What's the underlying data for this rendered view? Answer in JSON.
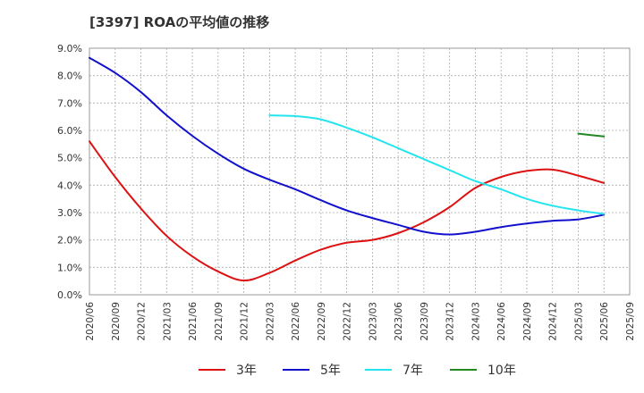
{
  "chart_data": {
    "type": "line",
    "title": "[3397]  ROAの平均値の推移",
    "xlabel": "",
    "ylabel": "",
    "ylim": [
      0,
      9
    ],
    "yticks": [
      "0.0%",
      "1.0%",
      "2.0%",
      "3.0%",
      "4.0%",
      "5.0%",
      "6.0%",
      "7.0%",
      "8.0%",
      "9.0%"
    ],
    "categories": [
      "2020/06",
      "2020/09",
      "2020/12",
      "2021/03",
      "2021/06",
      "2021/09",
      "2021/12",
      "2022/03",
      "2022/06",
      "2022/09",
      "2022/12",
      "2023/03",
      "2023/06",
      "2023/09",
      "2023/12",
      "2024/03",
      "2024/06",
      "2024/09",
      "2024/12",
      "2025/03",
      "2025/06",
      "2025/09"
    ],
    "grid": true,
    "legend_position": "bottom",
    "series": [
      {
        "name": "3年",
        "color": "#dd1111",
        "values": [
          5.6,
          4.3,
          3.15,
          2.15,
          1.4,
          0.85,
          0.52,
          0.8,
          1.25,
          1.65,
          1.9,
          2.0,
          2.25,
          2.65,
          3.2,
          3.9,
          4.3,
          4.52,
          4.57,
          4.35,
          4.08,
          null
        ]
      },
      {
        "name": "5年",
        "color": "#1111cc",
        "values": [
          8.65,
          8.1,
          7.4,
          6.55,
          5.8,
          5.15,
          4.6,
          4.2,
          3.85,
          3.45,
          3.08,
          2.8,
          2.55,
          2.3,
          2.2,
          2.3,
          2.47,
          2.6,
          2.7,
          2.75,
          2.92,
          null
        ]
      },
      {
        "name": "7年",
        "color": "#22e5ee",
        "values": [
          null,
          null,
          null,
          null,
          null,
          null,
          null,
          6.55,
          6.52,
          6.4,
          6.1,
          5.75,
          5.35,
          4.95,
          4.55,
          4.15,
          3.85,
          3.5,
          3.25,
          3.08,
          2.95,
          null
        ]
      },
      {
        "name": "10年",
        "color": "#228822",
        "values": [
          null,
          null,
          null,
          null,
          null,
          null,
          null,
          null,
          null,
          null,
          null,
          null,
          null,
          null,
          null,
          null,
          null,
          null,
          null,
          5.88,
          5.78,
          null
        ]
      }
    ]
  }
}
